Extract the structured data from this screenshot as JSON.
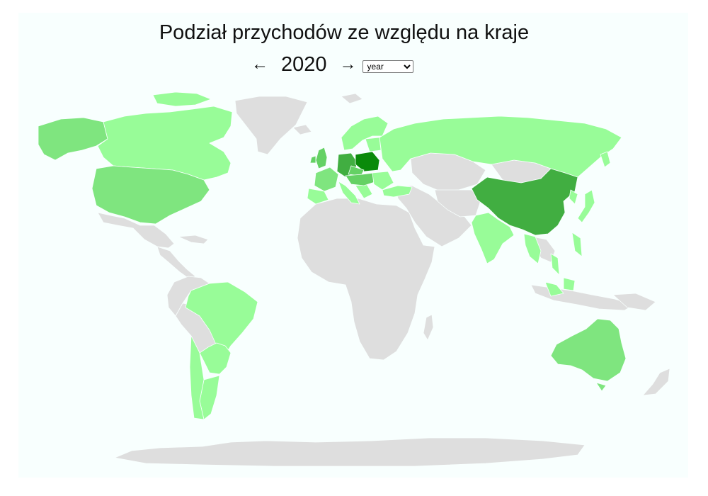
{
  "header": {
    "title": "Podział przychodów ze względu na kraje",
    "prev_label": "←",
    "next_label": "→",
    "year": "2020",
    "period": {
      "selected": "year",
      "options": [
        "year"
      ]
    }
  },
  "map": {
    "colors": {
      "background": "#f8fffe",
      "no_data": "#dedede",
      "light": "#98fc98",
      "medium_light": "#7fe57f",
      "medium": "#64d164",
      "dark": "#41ae41",
      "darkest": "#0a8a0a"
    },
    "countries": [
      {
        "name": "Poland",
        "level": "darkest"
      },
      {
        "name": "Germany",
        "level": "dark"
      },
      {
        "name": "China",
        "level": "dark"
      },
      {
        "name": "United Kingdom",
        "level": "medium"
      },
      {
        "name": "Czechia",
        "level": "medium"
      },
      {
        "name": "Hungary",
        "level": "medium"
      },
      {
        "name": "Austria",
        "level": "medium"
      },
      {
        "name": "Alaska",
        "level": "medium_light"
      },
      {
        "name": "Australia",
        "level": "medium_light"
      },
      {
        "name": "United States",
        "level": "medium_light"
      },
      {
        "name": "France",
        "level": "medium_light"
      },
      {
        "name": "Canada",
        "level": "light"
      },
      {
        "name": "Russia",
        "level": "light"
      },
      {
        "name": "Brazil",
        "level": "light"
      },
      {
        "name": "India",
        "level": "light"
      },
      {
        "name": "Chile",
        "level": "light"
      },
      {
        "name": "Argentina",
        "level": "light"
      },
      {
        "name": "Japan",
        "level": "light"
      },
      {
        "name": "Turkey",
        "level": "light"
      },
      {
        "name": "Nordics",
        "level": "light"
      },
      {
        "name": "Southern Europe",
        "level": "light"
      }
    ]
  }
}
